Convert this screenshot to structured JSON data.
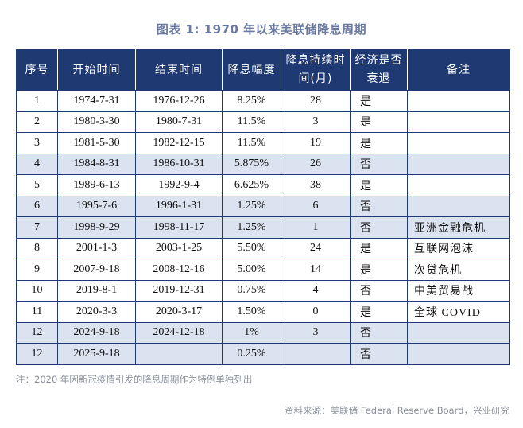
{
  "title": "图表 1:   1970 年以来美联储降息周期",
  "table": {
    "headers": [
      "序号",
      "开始时间",
      "结束时间",
      "降息幅度",
      "降息持续时间(月)",
      "经济是否衰退",
      "备注"
    ],
    "rows": [
      [
        "1",
        "1974-7-31",
        "1976-12-26",
        "8.25%",
        "28",
        "是",
        null
      ],
      [
        "2",
        "1980-3-30",
        "1980-7-31",
        "11.5%",
        "3",
        "是",
        null
      ],
      [
        "3",
        "1981-5-30",
        "1982-12-15",
        "11.5%",
        "19",
        "是",
        null
      ],
      [
        "4",
        "1984-8-31",
        "1986-10-31",
        "5.875%",
        "26",
        "否",
        null
      ],
      [
        "5",
        "1989-6-13",
        "1992-9-4",
        "6.625%",
        "38",
        "是",
        null
      ],
      [
        "6",
        "1995-7-6",
        "1996-1-31",
        "1.25%",
        "6",
        "否",
        null
      ],
      [
        "7",
        "1998-9-29",
        "1998-11-17",
        "1.25%",
        "1",
        "否",
        "亚洲金融危机"
      ],
      [
        "8",
        "2001-1-3",
        "2003-1-25",
        "5.50%",
        "24",
        "是",
        "互联网泡沫"
      ],
      [
        "9",
        "2007-9-18",
        "2008-12-16",
        "5.00%",
        "14",
        "是",
        "次贷危机"
      ],
      [
        "10",
        "2019-8-1",
        "2019-12-31",
        "0.75%",
        "4",
        "否",
        "中美贸易战"
      ],
      [
        "11",
        "2020-3-3",
        "2020-3-17",
        "1.50%",
        "0",
        "是",
        "全球 COVID"
      ],
      [
        "12",
        "2024-9-18",
        "2024-12-18",
        "1%",
        "3",
        "否",
        null
      ],
      [
        "12",
        "2025-9-18",
        null,
        "0.25%",
        null,
        "否",
        null
      ]
    ]
  },
  "note": "注：2020 年因新冠疫情引发的降息周期作为特例单独列出",
  "source": "资料来源：美联储 Federal Reserve Board，兴业研究"
}
